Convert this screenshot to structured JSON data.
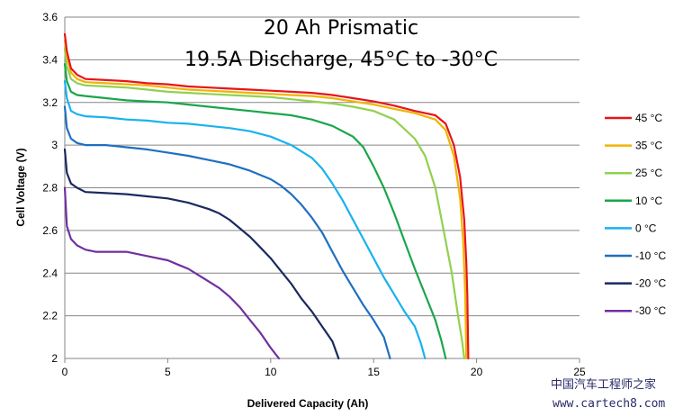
{
  "chart_data": {
    "type": "line",
    "title": [
      "20 Ah Prismatic",
      "19.5A Discharge, 45°C to -30°C"
    ],
    "xlabel": "Delivered Capacity  (Ah)",
    "ylabel": "Cell Voltage  (V)",
    "xlim": [
      0,
      25
    ],
    "ylim": [
      2,
      3.6
    ],
    "x_ticks": [
      0,
      5,
      10,
      15,
      20,
      25
    ],
    "x_tick_labels": [
      "0",
      "5",
      "10",
      "15",
      "20",
      "25"
    ],
    "y_ticks": [
      2,
      2.2,
      2.4,
      2.6,
      2.8,
      3,
      3.2,
      3.4,
      3.6
    ],
    "y_tick_labels": [
      "2",
      "2.2",
      "2.4",
      "2.6",
      "2.8",
      "3",
      "3.2",
      "3.4",
      "3.6"
    ],
    "grid": "horizontal",
    "legend_position": "right",
    "series": [
      {
        "name": "45 °C",
        "color": "#e8141a",
        "x": [
          0,
          0.1,
          0.3,
          0.6,
          1,
          2,
          3,
          4,
          5,
          6,
          7,
          8,
          9,
          10,
          11,
          12,
          13,
          14,
          15,
          16,
          17,
          18,
          18.5,
          18.9,
          19.2,
          19.4,
          19.5,
          19.55,
          19.6
        ],
        "y": [
          3.52,
          3.44,
          3.36,
          3.33,
          3.31,
          3.305,
          3.3,
          3.29,
          3.285,
          3.275,
          3.27,
          3.265,
          3.26,
          3.255,
          3.25,
          3.245,
          3.235,
          3.22,
          3.205,
          3.185,
          3.16,
          3.14,
          3.1,
          3.0,
          2.85,
          2.65,
          2.45,
          2.3,
          2.0
        ]
      },
      {
        "name": "35 °C",
        "color": "#f0b400",
        "x": [
          0,
          0.1,
          0.3,
          0.6,
          1,
          2,
          3,
          4,
          5,
          6,
          7,
          8,
          9,
          10,
          11,
          12,
          13,
          14,
          15,
          16,
          17,
          18,
          18.5,
          18.9,
          19.2,
          19.35,
          19.45,
          19.5
        ],
        "y": [
          3.49,
          3.42,
          3.34,
          3.31,
          3.295,
          3.29,
          3.285,
          3.28,
          3.27,
          3.26,
          3.255,
          3.25,
          3.245,
          3.24,
          3.235,
          3.23,
          3.22,
          3.205,
          3.19,
          3.17,
          3.15,
          3.12,
          3.07,
          2.95,
          2.75,
          2.55,
          2.3,
          2.0
        ]
      },
      {
        "name": "25 °C",
        "color": "#92d050",
        "x": [
          0,
          0.1,
          0.3,
          0.6,
          1,
          2,
          3,
          4,
          5,
          6,
          7,
          8,
          9,
          10,
          11,
          12,
          13,
          14,
          15,
          16,
          17,
          17.5,
          18,
          18.4,
          18.8,
          19.1,
          19.3,
          19.4
        ],
        "y": [
          3.45,
          3.37,
          3.31,
          3.29,
          3.28,
          3.275,
          3.27,
          3.26,
          3.25,
          3.245,
          3.24,
          3.235,
          3.23,
          3.225,
          3.215,
          3.205,
          3.195,
          3.18,
          3.16,
          3.12,
          3.03,
          2.95,
          2.8,
          2.6,
          2.4,
          2.2,
          2.08,
          2.0
        ]
      },
      {
        "name": "10 °C",
        "color": "#1aa64a",
        "x": [
          0,
          0.1,
          0.3,
          0.6,
          1,
          2,
          3,
          4,
          5,
          6,
          7,
          8,
          9,
          10,
          11,
          12,
          13,
          14,
          14.5,
          15,
          15.5,
          16,
          16.5,
          17,
          17.5,
          18,
          18.3,
          18.5
        ],
        "y": [
          3.38,
          3.3,
          3.25,
          3.235,
          3.23,
          3.22,
          3.21,
          3.205,
          3.2,
          3.19,
          3.18,
          3.17,
          3.16,
          3.15,
          3.14,
          3.12,
          3.09,
          3.04,
          2.99,
          2.9,
          2.8,
          2.68,
          2.55,
          2.42,
          2.3,
          2.18,
          2.08,
          2.0
        ]
      },
      {
        "name": "0 °C",
        "color": "#18b2f0",
        "x": [
          0,
          0.1,
          0.3,
          0.6,
          1,
          2,
          3,
          4,
          5,
          6,
          7,
          8,
          9,
          10,
          11,
          12,
          12.5,
          13,
          13.5,
          14,
          14.5,
          15,
          15.5,
          16,
          16.5,
          17,
          17.3,
          17.5
        ],
        "y": [
          3.3,
          3.22,
          3.16,
          3.145,
          3.135,
          3.13,
          3.12,
          3.115,
          3.105,
          3.1,
          3.09,
          3.08,
          3.065,
          3.04,
          3.0,
          2.94,
          2.89,
          2.82,
          2.74,
          2.65,
          2.56,
          2.47,
          2.38,
          2.3,
          2.22,
          2.15,
          2.07,
          2.0
        ]
      },
      {
        "name": "-10 °C",
        "color": "#1f6fc0",
        "x": [
          0,
          0.1,
          0.3,
          0.6,
          1,
          2,
          3,
          4,
          5,
          6,
          7,
          8,
          9,
          10,
          10.5,
          11,
          11.5,
          12,
          12.5,
          13,
          13.5,
          14,
          14.5,
          15,
          15.5,
          15.8
        ],
        "y": [
          3.18,
          3.08,
          3.03,
          3.01,
          3.0,
          3.0,
          2.99,
          2.98,
          2.965,
          2.95,
          2.93,
          2.91,
          2.88,
          2.84,
          2.81,
          2.77,
          2.72,
          2.66,
          2.59,
          2.5,
          2.41,
          2.33,
          2.25,
          2.18,
          2.1,
          2.0
        ]
      },
      {
        "name": "-20 °C",
        "color": "#1a2a5e",
        "x": [
          0,
          0.1,
          0.3,
          0.6,
          1,
          2,
          3,
          4,
          5,
          6,
          7,
          7.5,
          8,
          8.5,
          9,
          9.5,
          10,
          10.5,
          11,
          11.5,
          12,
          12.5,
          13,
          13.3
        ],
        "y": [
          2.98,
          2.87,
          2.82,
          2.8,
          2.78,
          2.775,
          2.77,
          2.76,
          2.75,
          2.73,
          2.7,
          2.68,
          2.65,
          2.61,
          2.57,
          2.52,
          2.47,
          2.41,
          2.35,
          2.28,
          2.22,
          2.15,
          2.08,
          2.0
        ]
      },
      {
        "name": "-30 °C",
        "color": "#7030a0",
        "x": [
          0,
          0.1,
          0.3,
          0.6,
          1,
          1.5,
          2,
          3,
          4,
          5,
          5.5,
          6,
          6.5,
          7,
          7.5,
          8,
          8.5,
          9,
          9.5,
          10,
          10.4
        ],
        "y": [
          2.8,
          2.62,
          2.56,
          2.53,
          2.51,
          2.5,
          2.5,
          2.5,
          2.48,
          2.46,
          2.44,
          2.42,
          2.39,
          2.36,
          2.33,
          2.29,
          2.24,
          2.18,
          2.12,
          2.05,
          2.0
        ]
      }
    ]
  },
  "watermark": {
    "line1": "中国汽车工程师之家",
    "line2": "www.cartech8.com"
  }
}
